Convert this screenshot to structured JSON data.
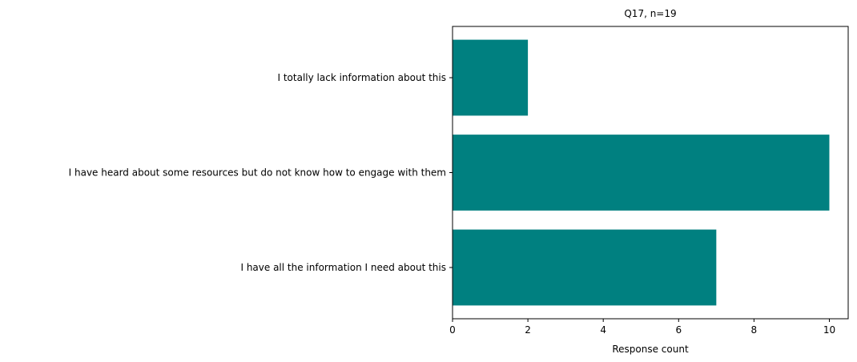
{
  "chart_data": {
    "type": "bar",
    "orientation": "horizontal",
    "title": "Q17, n=19",
    "xlabel": "Response count",
    "ylabel": "",
    "categories": [
      "I totally lack information about this",
      "I have heard about some resources but do not know how to engage with them",
      "I have all the information I need about this"
    ],
    "values": [
      2,
      10,
      7
    ],
    "xlim": [
      0,
      10.5
    ],
    "xticks": [
      0,
      2,
      4,
      6,
      8,
      10
    ],
    "grid": false,
    "legend": "none",
    "bar_color": "#008080"
  }
}
